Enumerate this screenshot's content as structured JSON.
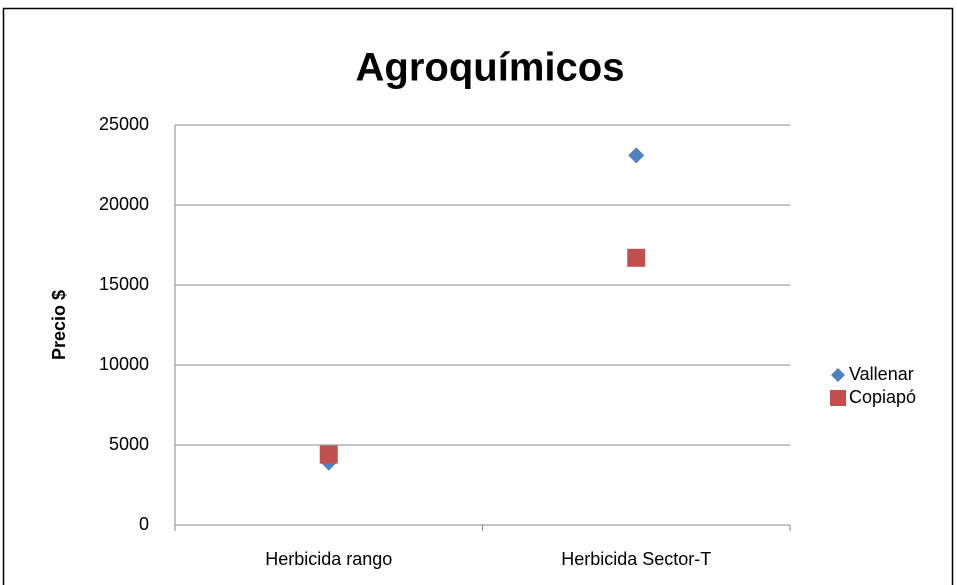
{
  "chart_data": {
    "type": "scatter",
    "title": "Agroquímicos",
    "ylabel": "Precio $",
    "categories": [
      "Herbicida rango",
      "Herbicida Sector-T"
    ],
    "series": [
      {
        "name": "Vallenar",
        "color": "#4f81bd",
        "marker": "diamond",
        "values": [
          3900,
          23100
        ]
      },
      {
        "name": "Copiapó",
        "color": "#c0504d",
        "marker": "square",
        "values": [
          4400,
          16700
        ]
      }
    ],
    "ylim": [
      0,
      25000
    ],
    "yticks": [
      0,
      5000,
      10000,
      15000,
      20000,
      25000
    ],
    "grid": true,
    "legend": "right"
  }
}
